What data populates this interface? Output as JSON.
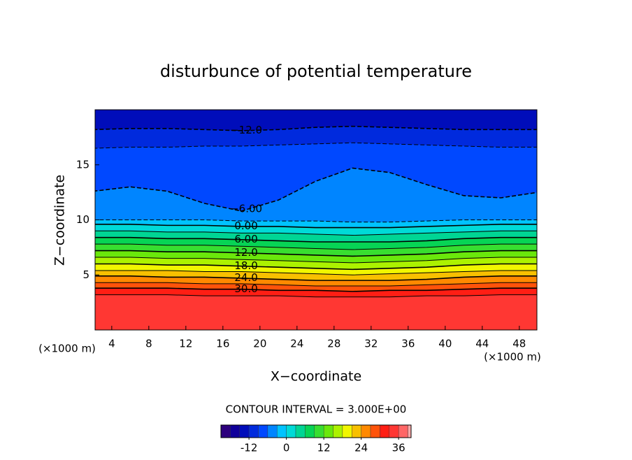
{
  "chart_data": {
    "type": "contour",
    "title": "disturbunce of potential temperature",
    "x_label": "X−coordinate",
    "y_label": "Z−coordinate",
    "x_unit_left": "(×1000 m)",
    "x_unit_right": "(×1000 m)",
    "xlim": [
      2.2,
      49.9
    ],
    "ylim": [
      0,
      20
    ],
    "xticks": [
      4,
      8,
      12,
      16,
      20,
      24,
      28,
      32,
      36,
      40,
      44,
      48
    ],
    "yticks": [
      5,
      10,
      15
    ],
    "x": [
      2,
      6,
      10,
      14,
      18,
      22,
      26,
      30,
      34,
      38,
      42,
      46,
      50
    ],
    "contours": [
      {
        "level": -12,
        "label": "−12.0",
        "y": [
          18.2,
          18.3,
          18.3,
          18.2,
          18.1,
          18.2,
          18.4,
          18.5,
          18.4,
          18.3,
          18.2,
          18.2,
          18.2
        ]
      },
      {
        "level": -9,
        "y": [
          16.5,
          16.6,
          16.6,
          16.7,
          16.7,
          16.8,
          16.9,
          17.0,
          16.9,
          16.8,
          16.7,
          16.6,
          16.6
        ]
      },
      {
        "level": -6,
        "label": "−6.00",
        "y": [
          12.6,
          13.0,
          12.6,
          11.5,
          10.8,
          11.8,
          13.5,
          14.7,
          14.3,
          13.2,
          12.2,
          12.0,
          12.5
        ]
      },
      {
        "level": -3,
        "y": [
          10.0,
          10.0,
          10.0,
          10.0,
          9.9,
          9.9,
          9.9,
          9.8,
          9.8,
          9.9,
          10.0,
          10.0,
          10.0
        ]
      },
      {
        "level": 0,
        "label": "0.00",
        "y": [
          9.6,
          9.6,
          9.5,
          9.5,
          9.4,
          9.4,
          9.3,
          9.3,
          9.3,
          9.4,
          9.5,
          9.6,
          9.6
        ]
      },
      {
        "level": 3,
        "y": [
          9.0,
          9.0,
          8.9,
          8.9,
          8.8,
          8.8,
          8.7,
          8.6,
          8.7,
          8.8,
          8.9,
          9.0,
          9.0
        ]
      },
      {
        "level": 6,
        "label": "6.00",
        "y": [
          8.4,
          8.4,
          8.3,
          8.3,
          8.2,
          8.1,
          8.0,
          8.0,
          8.0,
          8.1,
          8.3,
          8.4,
          8.4
        ]
      },
      {
        "level": 9,
        "y": [
          7.8,
          7.8,
          7.7,
          7.7,
          7.6,
          7.5,
          7.4,
          7.3,
          7.4,
          7.5,
          7.7,
          7.8,
          7.8
        ]
      },
      {
        "level": 12,
        "label": "12.0",
        "y": [
          7.2,
          7.2,
          7.1,
          7.1,
          7.0,
          6.9,
          6.8,
          6.7,
          6.8,
          6.9,
          7.1,
          7.2,
          7.2
        ]
      },
      {
        "level": 15,
        "y": [
          6.6,
          6.6,
          6.5,
          6.5,
          6.4,
          6.3,
          6.2,
          6.1,
          6.2,
          6.3,
          6.5,
          6.6,
          6.6
        ]
      },
      {
        "level": 18,
        "label": "18.0",
        "y": [
          6.0,
          6.0,
          5.9,
          5.9,
          5.8,
          5.7,
          5.6,
          5.5,
          5.6,
          5.7,
          5.9,
          6.0,
          6.0
        ]
      },
      {
        "level": 21,
        "y": [
          5.4,
          5.4,
          5.4,
          5.3,
          5.3,
          5.2,
          5.1,
          5.0,
          5.1,
          5.2,
          5.3,
          5.4,
          5.4
        ]
      },
      {
        "level": 24,
        "label": "24.0",
        "y": [
          4.9,
          4.9,
          4.8,
          4.8,
          4.7,
          4.6,
          4.5,
          4.5,
          4.5,
          4.6,
          4.8,
          4.9,
          4.9
        ]
      },
      {
        "level": 27,
        "y": [
          4.3,
          4.3,
          4.3,
          4.2,
          4.2,
          4.1,
          4.0,
          4.0,
          4.0,
          4.1,
          4.2,
          4.3,
          4.3
        ]
      },
      {
        "level": 30,
        "label": "30.0",
        "y": [
          3.8,
          3.8,
          3.8,
          3.7,
          3.7,
          3.6,
          3.6,
          3.5,
          3.6,
          3.6,
          3.7,
          3.8,
          3.8
        ]
      },
      {
        "level": 33,
        "y": [
          3.2,
          3.2,
          3.2,
          3.1,
          3.1,
          3.1,
          3.0,
          3.0,
          3.0,
          3.1,
          3.1,
          3.2,
          3.2
        ]
      }
    ],
    "contour_interval": 3,
    "contour_interval_label": "CONTOUR INTERVAL = 3.000E+00",
    "colorbar": {
      "lim": [
        -21,
        40
      ],
      "ticks": [
        -12,
        0,
        12,
        24,
        36
      ]
    }
  }
}
